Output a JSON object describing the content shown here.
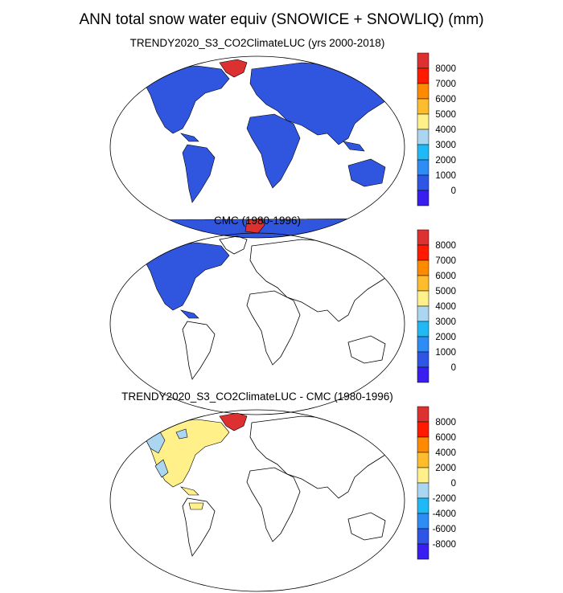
{
  "title": "ANN total snow water equiv (SNOWICE + SNOWLIQ) (mm)",
  "panels": [
    {
      "subtitle": "TRENDY2020_S3_CO2ClimateLUC (yrs 2000-2018)"
    },
    {
      "subtitle": "CMC (1980-1996)"
    },
    {
      "subtitle": "TRENDY2020_S3_CO2ClimateLUC - CMC (1980-1996)"
    }
  ],
  "colorbars": {
    "absolute": {
      "labels": [
        "8000",
        "7000",
        "6000",
        "5000",
        "4000",
        "3000",
        "2000",
        "1000",
        "0"
      ],
      "colors": [
        "#dd3030",
        "#ff1a00",
        "#ff8a00",
        "#ffbd2e",
        "#fff08a",
        "#aad6f2",
        "#1fbaf5",
        "#2e8cf5",
        "#2e55e6",
        "#3a1ef0"
      ]
    },
    "difference": {
      "labels": [
        "8000",
        "6000",
        "4000",
        "2000",
        "0",
        "-2000",
        "-4000",
        "-6000",
        "-8000"
      ],
      "colors": [
        "#dd3030",
        "#ff1a00",
        "#ff8a00",
        "#ffbd2e",
        "#fff08a",
        "#aad6f2",
        "#1fbaf5",
        "#2e8cf5",
        "#2e55e6",
        "#3a1ef0"
      ]
    }
  },
  "colors": {
    "land_low": "#3056e0",
    "high_ice": "#dd3030",
    "diff_pos": "#fff08a",
    "diff_neg": "#aad6f2"
  }
}
